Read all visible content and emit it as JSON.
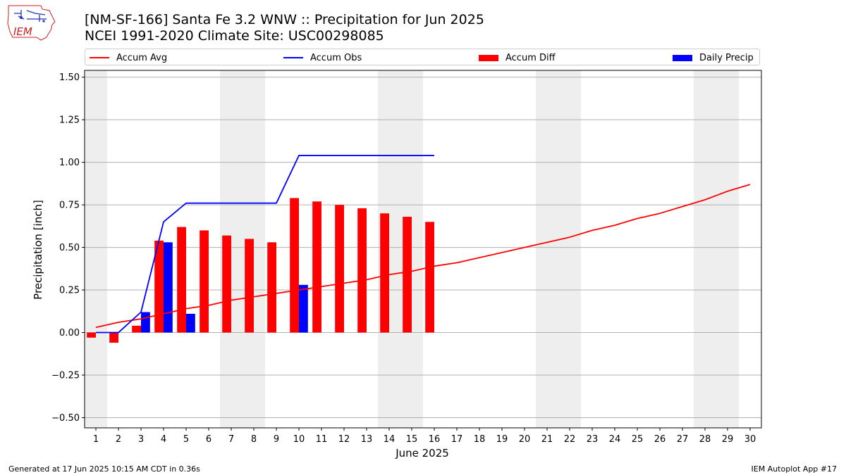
{
  "header": {
    "title_line1": "[NM-SF-166] Santa Fe 3.2 WNW :: Precipitation for Jun 2025",
    "title_line2": "NCEI 1991-2020 Climate Site: USC00298085"
  },
  "footer": {
    "left": "Generated at 17 Jun 2025 10:15 AM CDT in 0.36s",
    "right": "IEM Autoplot App #17"
  },
  "logo": {
    "text": "IEM"
  },
  "chart_data": {
    "type": "bar",
    "xlabel": "June 2025",
    "ylabel": "Precipitation [inch]",
    "xlim": [
      0.5,
      30.5
    ],
    "ylim": [
      -0.56,
      1.54
    ],
    "x_ticks": [
      1,
      2,
      3,
      4,
      5,
      6,
      7,
      8,
      9,
      10,
      11,
      12,
      13,
      14,
      15,
      16,
      17,
      18,
      19,
      20,
      21,
      22,
      23,
      24,
      25,
      26,
      27,
      28,
      29,
      30
    ],
    "y_ticks": [
      -0.5,
      -0.25,
      0.0,
      0.25,
      0.5,
      0.75,
      1.0,
      1.25,
      1.5
    ],
    "y_tick_labels": [
      "−0.50",
      "−0.25",
      "0.00",
      "0.25",
      "0.50",
      "0.75",
      "1.00",
      "1.25",
      "1.50"
    ],
    "grid": "horizontal",
    "weekend_shading": [
      [
        0.5,
        1.5
      ],
      [
        6.5,
        8.5
      ],
      [
        13.5,
        15.5
      ],
      [
        20.5,
        22.5
      ],
      [
        27.5,
        29.5
      ]
    ],
    "legend_position": "top",
    "series": [
      {
        "name": "Accum Avg",
        "kind": "line",
        "color": "#ff0000",
        "x": [
          1,
          2,
          3,
          4,
          5,
          6,
          7,
          8,
          9,
          10,
          11,
          12,
          13,
          14,
          15,
          16,
          17,
          18,
          19,
          20,
          21,
          22,
          23,
          24,
          25,
          26,
          27,
          28,
          29,
          30
        ],
        "values": [
          0.03,
          0.06,
          0.08,
          0.11,
          0.14,
          0.16,
          0.19,
          0.21,
          0.23,
          0.25,
          0.27,
          0.29,
          0.31,
          0.34,
          0.36,
          0.39,
          0.41,
          0.44,
          0.47,
          0.5,
          0.53,
          0.56,
          0.6,
          0.63,
          0.67,
          0.7,
          0.74,
          0.78,
          0.83,
          0.87
        ]
      },
      {
        "name": "Accum Obs",
        "kind": "line",
        "color": "#0000ff",
        "x": [
          1,
          2,
          3,
          4,
          5,
          6,
          7,
          8,
          9,
          10,
          11,
          12,
          13,
          14,
          15,
          16
        ],
        "values": [
          0.0,
          0.0,
          0.12,
          0.65,
          0.76,
          0.76,
          0.76,
          0.76,
          0.76,
          1.04,
          1.04,
          1.04,
          1.04,
          1.04,
          1.04,
          1.04
        ]
      },
      {
        "name": "Accum Diff",
        "kind": "bar",
        "color": "#ff0000",
        "x": [
          1,
          2,
          3,
          4,
          5,
          6,
          7,
          8,
          9,
          10,
          11,
          12,
          13,
          14,
          15,
          16
        ],
        "values": [
          -0.03,
          -0.06,
          0.04,
          0.54,
          0.62,
          0.6,
          0.57,
          0.55,
          0.53,
          0.79,
          0.77,
          0.75,
          0.73,
          0.7,
          0.68,
          0.65
        ]
      },
      {
        "name": "Daily Precip",
        "kind": "bar",
        "color": "#0000ff",
        "x": [
          1,
          2,
          3,
          4,
          5,
          6,
          7,
          8,
          9,
          10,
          11,
          12,
          13,
          14,
          15,
          16
        ],
        "values": [
          0,
          0,
          0.12,
          0.53,
          0.11,
          0,
          0,
          0,
          0,
          0.28,
          0,
          0,
          0,
          0,
          0,
          0
        ]
      }
    ]
  }
}
